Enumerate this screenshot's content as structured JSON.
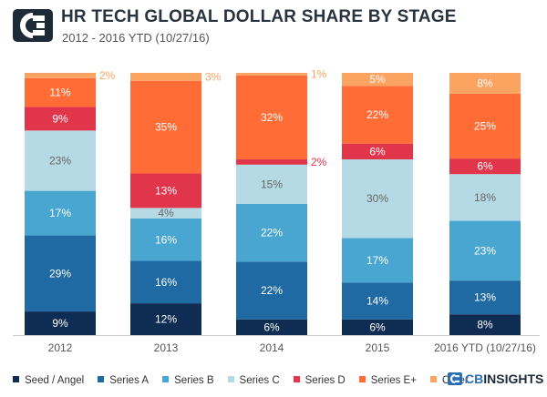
{
  "header": {
    "title": "HR TECH GLOBAL DOLLAR SHARE BY STAGE",
    "subtitle": "2012 - 2016 YTD (10/27/16)"
  },
  "brand": {
    "name_prefix": "CB",
    "name_suffix": "INSIGHTS"
  },
  "chart_data": {
    "type": "bar",
    "stacked": true,
    "percent": true,
    "title": "HR TECH GLOBAL DOLLAR SHARE BY STAGE",
    "subtitle": "2012 - 2016 YTD (10/27/16)",
    "categories": [
      "2012",
      "2013",
      "2014",
      "2015",
      "2016 YTD (10/27/16)"
    ],
    "ylim": [
      0,
      100
    ],
    "legend_position": "bottom",
    "series": [
      {
        "name": "Seed / Angel",
        "color": "#0f2c52",
        "values": [
          9,
          12,
          6,
          6,
          8
        ]
      },
      {
        "name": "Series A",
        "color": "#1f6aa3",
        "values": [
          29,
          16,
          22,
          14,
          13
        ]
      },
      {
        "name": "Series B",
        "color": "#49a6d1",
        "values": [
          17,
          16,
          22,
          17,
          23
        ]
      },
      {
        "name": "Series C",
        "color": "#b5d9e5",
        "values": [
          23,
          4,
          15,
          30,
          18
        ]
      },
      {
        "name": "Series D",
        "color": "#e0354a",
        "values": [
          9,
          13,
          2,
          6,
          6
        ]
      },
      {
        "name": "Series E+",
        "color": "#ff6c35",
        "values": [
          11,
          35,
          32,
          22,
          25
        ]
      },
      {
        "name": "Other",
        "color": "#fba461",
        "values": [
          2,
          3,
          1,
          5,
          8
        ]
      }
    ],
    "labels": [
      [
        "9%",
        "12%",
        "6%",
        "6%",
        "8%"
      ],
      [
        "29%",
        "16%",
        "22%",
        "14%",
        "13%"
      ],
      [
        "17%",
        "16%",
        "22%",
        "17%",
        "23%"
      ],
      [
        "23%",
        "4%",
        "15%",
        "30%",
        "18%"
      ],
      [
        "9%",
        "13%",
        "2%",
        "6%",
        "6%"
      ],
      [
        "11%",
        "35%",
        "32%",
        "22%",
        "25%"
      ],
      [
        "2%",
        "3%",
        "1%",
        "5%",
        "8%"
      ]
    ]
  }
}
